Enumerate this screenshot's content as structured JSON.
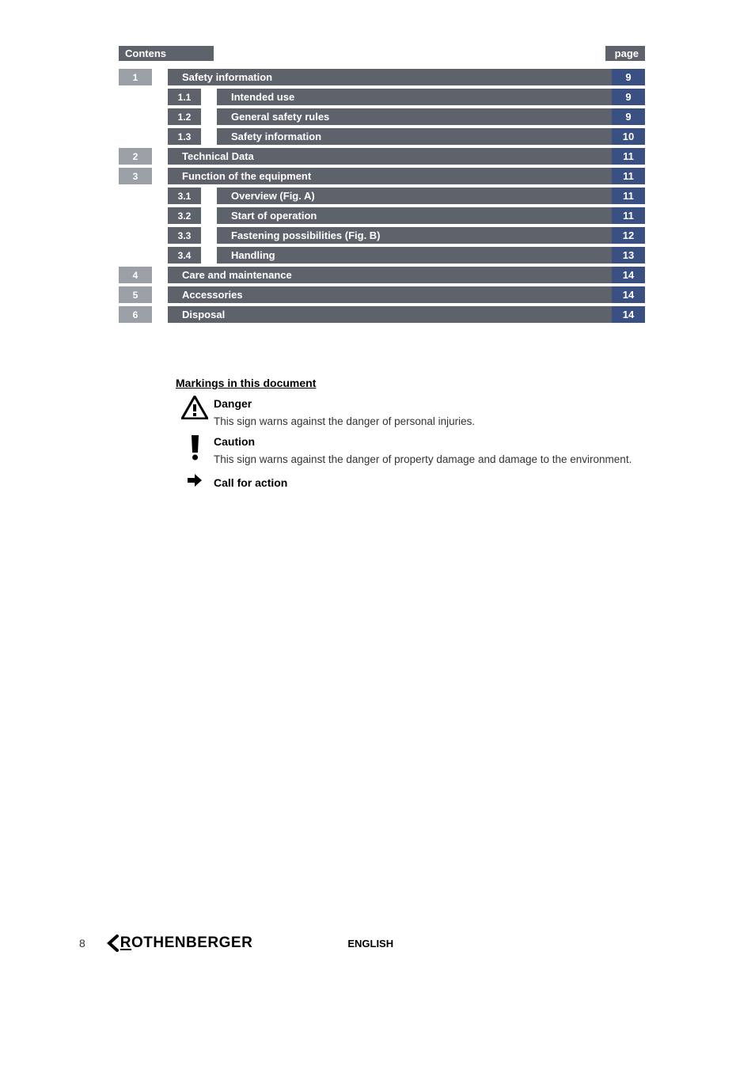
{
  "header": {
    "left": "Contens",
    "right": "page"
  },
  "toc": [
    {
      "type": "l1",
      "num": "1",
      "title": "Safety information",
      "page": "9"
    },
    {
      "type": "l2",
      "num": "1.1",
      "title": "Intended use",
      "page": "9"
    },
    {
      "type": "l2",
      "num": "1.2",
      "title": "General safety rules",
      "page": "9"
    },
    {
      "type": "l2",
      "num": "1.3",
      "title": "Safety information",
      "page": "10"
    },
    {
      "type": "l1",
      "num": "2",
      "title": "Technical Data",
      "page": "11"
    },
    {
      "type": "l1",
      "num": "3",
      "title": "Function of the equipment",
      "page": "11"
    },
    {
      "type": "l2",
      "num": "3.1",
      "title": "Overview (Fig. A)",
      "page": "11"
    },
    {
      "type": "l2",
      "num": "3.2",
      "title": "Start of operation",
      "page": "11"
    },
    {
      "type": "l2",
      "num": "3.3",
      "title": "Fastening possibilities (Fig. B)",
      "page": "12"
    },
    {
      "type": "l2",
      "num": "3.4",
      "title": "Handling",
      "page": "13"
    },
    {
      "type": "l1",
      "num": "4",
      "title": "Care and maintenance",
      "page": "14"
    },
    {
      "type": "l1",
      "num": "5",
      "title": "Accessories",
      "page": "14"
    },
    {
      "type": "l1",
      "num": "6",
      "title": "Disposal",
      "page": "14"
    }
  ],
  "markings": {
    "title": "Markings in this document",
    "danger": {
      "label": "Danger",
      "desc": "This sign warns against the danger of personal injuries."
    },
    "caution": {
      "label": "Caution",
      "desc": "This sign warns against the danger of property damage and damage to the environment."
    },
    "action": {
      "label": "Call for action"
    }
  },
  "footer": {
    "page": "8",
    "brandR": "R",
    "brandRest": "OTHENBERGER",
    "language": "ENGLISH"
  },
  "colors": {
    "toc_titlebar": "#5e626a",
    "toc_num_l1": "#9b9fa6",
    "toc_num_l2": "#5e626a",
    "toc_page": "#3a4f82",
    "text_white": "#ffffff",
    "text_black": "#000000"
  }
}
